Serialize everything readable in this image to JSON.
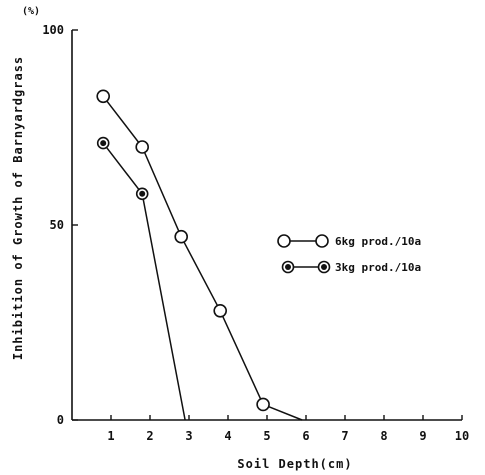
{
  "chart_data": {
    "type": "line",
    "title": "",
    "xlabel": "Soil Depth(cm)",
    "ylabel": "Inhibition of Growth of Barnyardgrass",
    "y_unit": "(%)",
    "xlim": [
      0,
      10
    ],
    "ylim": [
      0,
      100
    ],
    "x_ticks": [
      "1",
      "2",
      "3",
      "4",
      "5",
      "6",
      "7",
      "8",
      "9",
      "10"
    ],
    "y_ticks": [
      "0",
      "50",
      "100"
    ],
    "grid": false,
    "legend_position": "right",
    "series": [
      {
        "name": "6kg prod./10a",
        "marker": "open-circle",
        "x": [
          0.8,
          1.8,
          2.8,
          3.8,
          4.9,
          5.9
        ],
        "y": [
          83,
          70,
          47,
          28,
          4,
          0
        ]
      },
      {
        "name": "3kg prod./10a",
        "marker": "dotted-circle",
        "x": [
          0.8,
          1.8,
          2.9
        ],
        "y": [
          71,
          58,
          0
        ]
      }
    ]
  }
}
